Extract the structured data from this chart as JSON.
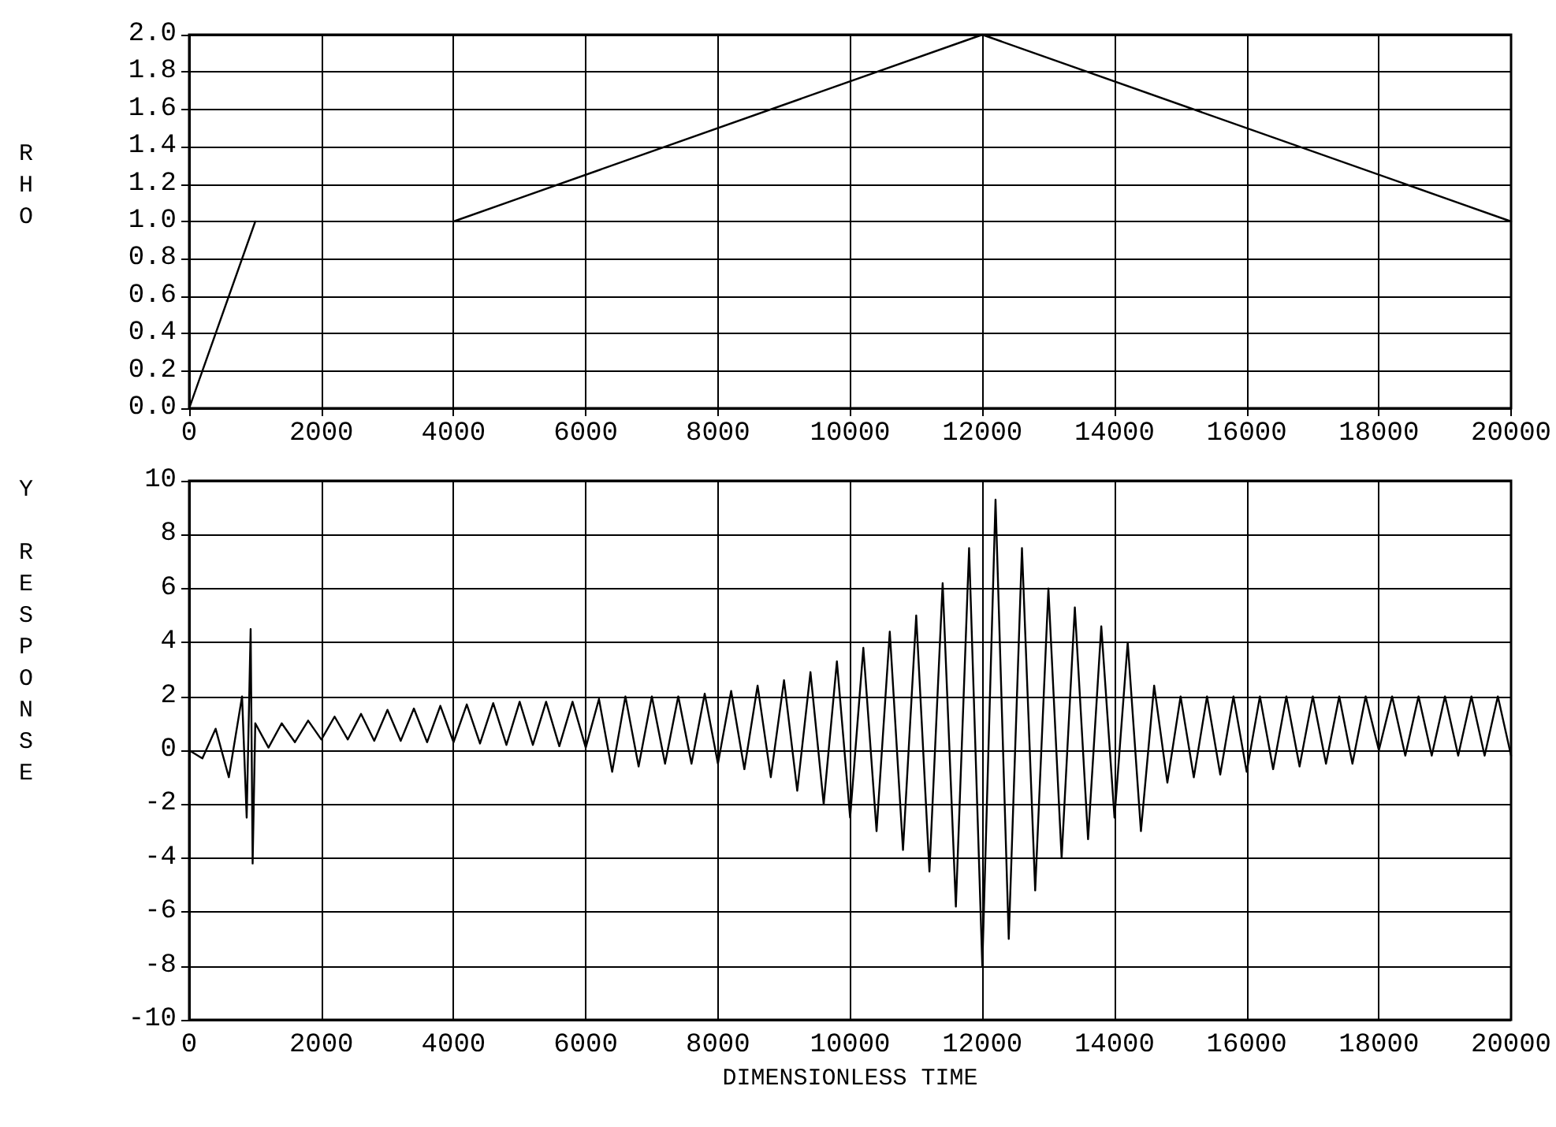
{
  "chart_data": [
    {
      "type": "line",
      "ylabel": "RHO",
      "grid": true,
      "marker": "none",
      "line_style": "solid",
      "xlim": [
        0,
        20000
      ],
      "xticks": [
        0,
        2000,
        4000,
        6000,
        8000,
        10000,
        12000,
        14000,
        16000,
        18000,
        20000
      ],
      "ylim": [
        0,
        2
      ],
      "yticks": [
        {
          "value": 0,
          "label": "0.0"
        },
        {
          "value": 0.2,
          "label": "0.2"
        },
        {
          "value": 0.4,
          "label": "0.4"
        },
        {
          "value": 0.6,
          "label": "0.6"
        },
        {
          "value": 0.8,
          "label": "0.8"
        },
        {
          "value": 1,
          "label": "1.0"
        },
        {
          "value": 1.2,
          "label": "1.2"
        },
        {
          "value": 1.4,
          "label": "1.4"
        },
        {
          "value": 1.6,
          "label": "1.6"
        },
        {
          "value": 1.8,
          "label": "1.8"
        },
        {
          "value": 2,
          "label": "2.0"
        }
      ],
      "series": [
        {
          "color": "#000000",
          "x": [
            0,
            1000
          ],
          "values": [
            0,
            1
          ]
        },
        {
          "color": "#000000",
          "x": [
            4000,
            12000,
            20000
          ],
          "values": [
            1,
            2,
            1
          ]
        }
      ]
    },
    {
      "type": "line",
      "xlabel": "DIMENSIONLESS TIME",
      "ylabel": "Y RESPONSE",
      "grid": true,
      "marker": "none",
      "line_style": "solid",
      "xlim": [
        0,
        20000
      ],
      "xticks": [
        0,
        2000,
        4000,
        6000,
        8000,
        10000,
        12000,
        14000,
        16000,
        18000,
        20000
      ],
      "ylim": [
        -10,
        10
      ],
      "yticks": [
        -10,
        -8,
        -6,
        -4,
        -2,
        0,
        2,
        4,
        6,
        8,
        10
      ],
      "x": [
        0,
        200,
        400,
        600,
        800,
        870,
        930,
        960,
        1000,
        1200,
        1400,
        1600,
        1800,
        2000,
        2200,
        2400,
        2600,
        2800,
        3000,
        3200,
        3400,
        3600,
        3800,
        4000,
        4200,
        4400,
        4600,
        4800,
        5000,
        5200,
        5400,
        5600,
        5800,
        6000,
        6200,
        6400,
        6600,
        6800,
        7000,
        7200,
        7400,
        7600,
        7800,
        8000,
        8200,
        8400,
        8600,
        8800,
        9000,
        9200,
        9400,
        9600,
        9800,
        10000,
        10200,
        10400,
        10600,
        10800,
        11000,
        11200,
        11400,
        11600,
        11800,
        12000,
        12200,
        12400,
        12600,
        12800,
        13000,
        13200,
        13400,
        13600,
        13800,
        14000,
        14200,
        14400,
        14600,
        14800,
        15000,
        15200,
        15400,
        15600,
        15800,
        16000,
        16200,
        16400,
        16600,
        16800,
        17000,
        17200,
        17400,
        17600,
        17800,
        18000,
        18200,
        18400,
        18600,
        18800,
        19000,
        19200,
        19400,
        19600,
        19800,
        20000
      ],
      "series": [
        {
          "color": "#000000",
          "values": [
            0,
            -0.3,
            0.8,
            -1,
            2,
            -2.5,
            4.5,
            -4.2,
            1,
            0.1,
            1,
            0.3,
            1.1,
            0.4,
            1.25,
            0.4,
            1.35,
            0.35,
            1.5,
            0.35,
            1.55,
            0.3,
            1.65,
            0.3,
            1.7,
            0.25,
            1.75,
            0.2,
            1.8,
            0.2,
            1.8,
            0.15,
            1.8,
            0.1,
            1.9,
            -0.8,
            2,
            -0.6,
            2,
            -0.5,
            2,
            -0.5,
            2.1,
            -0.5,
            2.2,
            -0.7,
            2.4,
            -1,
            2.6,
            -1.5,
            2.9,
            -2,
            3.3,
            -2.5,
            3.8,
            -3,
            4.4,
            -3.7,
            5,
            -4.5,
            6.2,
            -5.8,
            7.5,
            -8,
            9.3,
            -7,
            7.5,
            -5.2,
            6,
            -4,
            5.3,
            -3.3,
            4.6,
            -2.5,
            4,
            -3,
            2.4,
            -1.2,
            2,
            -1,
            2,
            -0.9,
            2,
            -0.8,
            2,
            -0.7,
            2,
            -0.6,
            2,
            -0.5,
            2,
            -0.5,
            2,
            0,
            2,
            -0.2,
            2,
            -0.2,
            2,
            -0.2,
            2,
            -0.2,
            2,
            -0.2
          ]
        }
      ]
    }
  ]
}
